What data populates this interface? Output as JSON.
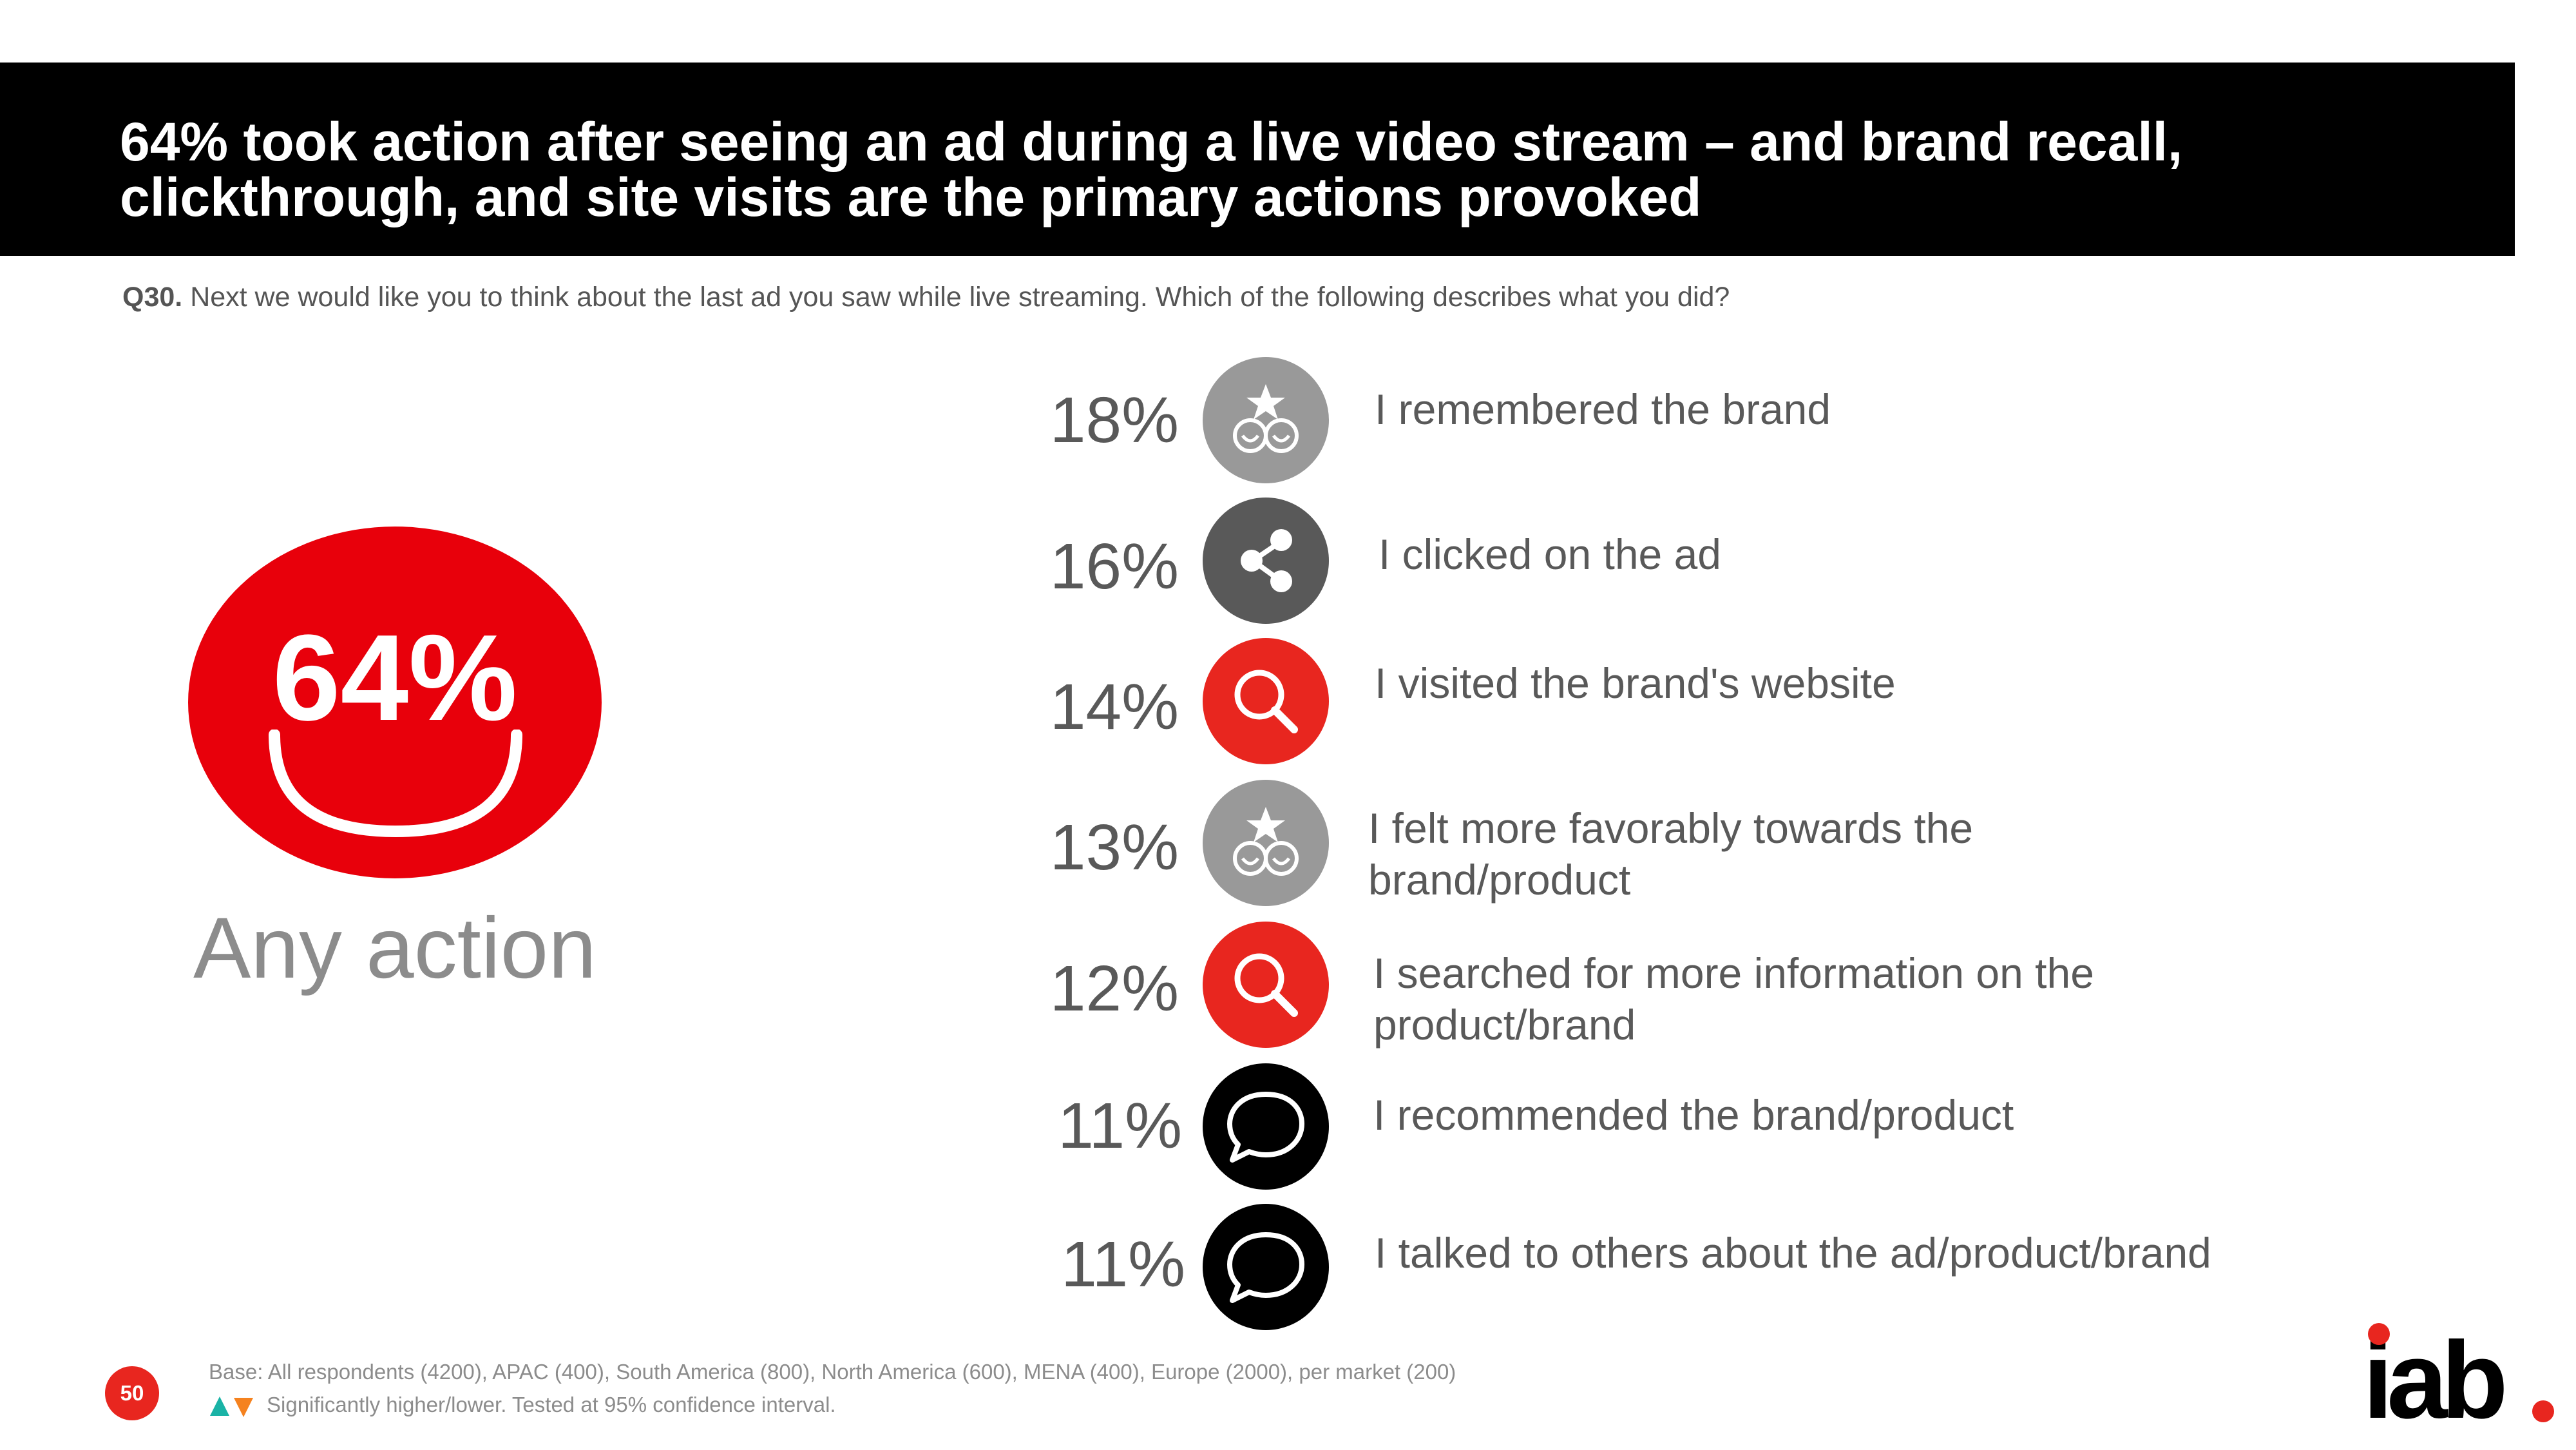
{
  "header": {
    "title": "64% took action after seeing an ad during a live video stream – and brand recall, clickthrough, and site visits are the primary actions provoked"
  },
  "question": {
    "code": "Q30.",
    "text": "Next we would like you to think about the last ad you saw while live streaming. Which of the following describes what you did?"
  },
  "summary": {
    "value": "64%",
    "label": "Any action",
    "color": "#e8000b"
  },
  "actions": [
    {
      "percent": "18%",
      "label": "I remembered the brand",
      "icon": "brand-star-icon",
      "color": "#999999"
    },
    {
      "percent": "16%",
      "label": "I clicked on the ad",
      "icon": "share-icon",
      "color": "#595959"
    },
    {
      "percent": "14%",
      "label": "I visited the brand's website",
      "icon": "search-icon",
      "color": "#e8261f"
    },
    {
      "percent": "13%",
      "label": "I felt more favorably towards the brand/product",
      "icon": "brand-star-icon",
      "color": "#999999"
    },
    {
      "percent": "12%",
      "label": "I searched for more information on the product/brand",
      "icon": "search-icon",
      "color": "#e8261f"
    },
    {
      "percent": "11%",
      "label": "I recommended the brand/product",
      "icon": "chat-bubble-icon",
      "color": "#000000"
    },
    {
      "percent": "11%",
      "label": "I talked to others about the ad/product/brand",
      "icon": "chat-bubble-icon",
      "color": "#000000"
    }
  ],
  "footer": {
    "base": "Base: All respondents (4200), APAC (400), South America (800), North America (600), MENA (400), Europe (2000), per market (200)",
    "significance": "Significantly higher/lower. Tested at 95% confidence interval.",
    "page_number": "50",
    "logo": "iab."
  }
}
